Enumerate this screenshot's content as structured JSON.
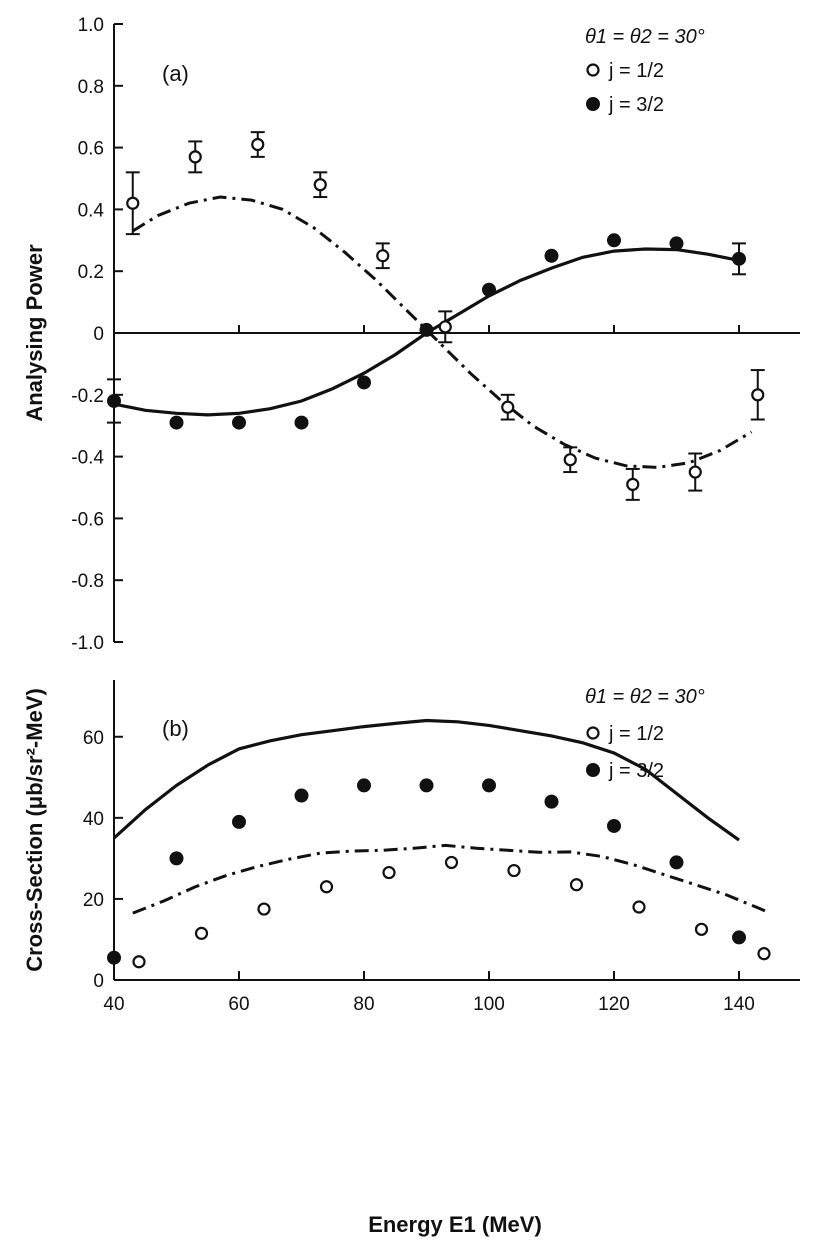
{
  "chart_data": [
    {
      "panel": "(a)",
      "type": "scatter",
      "ylabel": "Analysing Power",
      "xlim": [
        40,
        150
      ],
      "ylim": [
        -1.0,
        1.0
      ],
      "x_ticks": [
        40,
        60,
        80,
        100,
        120,
        140
      ],
      "y_ticks": [
        -1.0,
        -0.8,
        -0.6,
        -0.4,
        -0.2,
        0,
        0.2,
        0.4,
        0.6,
        0.8,
        1.0
      ],
      "y_tick_labels": [
        "-1.0",
        "-0.8",
        "-0.6",
        "-0.4",
        "-0.2",
        "0",
        "0.2",
        "0.4",
        "0.6",
        "0.8",
        "1.0"
      ],
      "zero_line": true,
      "legend": {
        "placement": "top-right",
        "header": "θ1 = θ2 = 30°",
        "entries": [
          {
            "label": "j = 1/2",
            "marker": "open-circle"
          },
          {
            "label": "j = 3/2",
            "marker": "filled-circle"
          }
        ]
      },
      "series": [
        {
          "label": "j = 1/2",
          "marker": "open-circle",
          "points": [
            {
              "x": 43,
              "y": 0.42,
              "err": 0.1
            },
            {
              "x": 53,
              "y": 0.57,
              "err": 0.05
            },
            {
              "x": 63,
              "y": 0.61,
              "err": 0.04
            },
            {
              "x": 73,
              "y": 0.48,
              "err": 0.04
            },
            {
              "x": 83,
              "y": 0.25,
              "err": 0.04
            },
            {
              "x": 93,
              "y": 0.02,
              "err": 0.05
            },
            {
              "x": 103,
              "y": -0.24,
              "err": 0.04
            },
            {
              "x": 113,
              "y": -0.41,
              "err": 0.04
            },
            {
              "x": 123,
              "y": -0.49,
              "err": 0.05
            },
            {
              "x": 133,
              "y": -0.45,
              "err": 0.06
            },
            {
              "x": 143,
              "y": -0.2,
              "err": 0.08
            }
          ]
        },
        {
          "label": "j = 3/2",
          "marker": "filled-circle",
          "points": [
            {
              "x": 40,
              "y": -0.22,
              "err": 0.07
            },
            {
              "x": 50,
              "y": -0.29
            },
            {
              "x": 60,
              "y": -0.29
            },
            {
              "x": 70,
              "y": -0.29
            },
            {
              "x": 80,
              "y": -0.16
            },
            {
              "x": 90,
              "y": 0.01
            },
            {
              "x": 100,
              "y": 0.14
            },
            {
              "x": 110,
              "y": 0.25
            },
            {
              "x": 120,
              "y": 0.3
            },
            {
              "x": 130,
              "y": 0.29
            },
            {
              "x": 140,
              "y": 0.24,
              "err": 0.05
            }
          ]
        }
      ],
      "curves": [
        {
          "style": "solid",
          "points": [
            [
              40,
              -0.23
            ],
            [
              45,
              -0.25
            ],
            [
              50,
              -0.26
            ],
            [
              55,
              -0.265
            ],
            [
              60,
              -0.26
            ],
            [
              65,
              -0.245
            ],
            [
              70,
              -0.22
            ],
            [
              75,
              -0.18
            ],
            [
              80,
              -0.13
            ],
            [
              85,
              -0.07
            ],
            [
              90,
              0.0
            ],
            [
              95,
              0.06
            ],
            [
              100,
              0.12
            ],
            [
              105,
              0.17
            ],
            [
              110,
              0.21
            ],
            [
              115,
              0.245
            ],
            [
              120,
              0.265
            ],
            [
              125,
              0.272
            ],
            [
              130,
              0.27
            ],
            [
              135,
              0.255
            ],
            [
              140,
              0.235
            ]
          ]
        },
        {
          "style": "dash-dot",
          "points": [
            [
              43,
              0.33
            ],
            [
              47,
              0.38
            ],
            [
              52,
              0.42
            ],
            [
              57,
              0.44
            ],
            [
              62,
              0.43
            ],
            [
              67,
              0.4
            ],
            [
              72,
              0.34
            ],
            [
              77,
              0.26
            ],
            [
              82,
              0.17
            ],
            [
              87,
              0.07
            ],
            [
              92,
              -0.03
            ],
            [
              97,
              -0.13
            ],
            [
              102,
              -0.22
            ],
            [
              107,
              -0.3
            ],
            [
              112,
              -0.36
            ],
            [
              117,
              -0.405
            ],
            [
              122,
              -0.43
            ],
            [
              127,
              -0.435
            ],
            [
              132,
              -0.42
            ],
            [
              137,
              -0.38
            ],
            [
              142,
              -0.32
            ]
          ]
        }
      ]
    },
    {
      "panel": "(b)",
      "type": "scatter",
      "xlabel": "Energy E1 (MeV)",
      "ylabel": "Cross-Section (μb/sr²-MeV)",
      "xlim": [
        40,
        150
      ],
      "ylim": [
        0,
        74
      ],
      "x_ticks": [
        40,
        60,
        80,
        100,
        120,
        140
      ],
      "x_tick_labels": [
        "40",
        "60",
        "80",
        "100",
        "120",
        "140"
      ],
      "y_ticks": [
        0,
        20,
        40,
        60
      ],
      "y_tick_labels": [
        "0",
        "20",
        "40",
        "60"
      ],
      "legend": {
        "placement": "top-right",
        "header": "θ1 = θ2 = 30°",
        "entries": [
          {
            "label": "j = 1/2",
            "marker": "open-circle"
          },
          {
            "label": "j = 3/2",
            "marker": "filled-circle"
          }
        ]
      },
      "series": [
        {
          "label": "j = 1/2",
          "marker": "open-circle",
          "points": [
            {
              "x": 44,
              "y": 4.5
            },
            {
              "x": 54,
              "y": 11.5
            },
            {
              "x": 64,
              "y": 17.5
            },
            {
              "x": 74,
              "y": 23
            },
            {
              "x": 84,
              "y": 26.5
            },
            {
              "x": 94,
              "y": 29
            },
            {
              "x": 104,
              "y": 27
            },
            {
              "x": 114,
              "y": 23.5
            },
            {
              "x": 124,
              "y": 18
            },
            {
              "x": 134,
              "y": 12.5
            },
            {
              "x": 144,
              "y": 6.5
            }
          ]
        },
        {
          "label": "j = 3/2",
          "marker": "filled-circle",
          "points": [
            {
              "x": 40,
              "y": 5.5
            },
            {
              "x": 50,
              "y": 30
            },
            {
              "x": 60,
              "y": 39
            },
            {
              "x": 70,
              "y": 45.5
            },
            {
              "x": 80,
              "y": 48
            },
            {
              "x": 90,
              "y": 48
            },
            {
              "x": 100,
              "y": 48
            },
            {
              "x": 110,
              "y": 44
            },
            {
              "x": 120,
              "y": 38
            },
            {
              "x": 130,
              "y": 29
            },
            {
              "x": 140,
              "y": 10.5
            }
          ]
        }
      ],
      "curves": [
        {
          "style": "solid",
          "points": [
            [
              40,
              35
            ],
            [
              45,
              42
            ],
            [
              50,
              48
            ],
            [
              55,
              53
            ],
            [
              60,
              57
            ],
            [
              65,
              59
            ],
            [
              70,
              60.5
            ],
            [
              75,
              61.5
            ],
            [
              80,
              62.5
            ],
            [
              85,
              63.3
            ],
            [
              90,
              64
            ],
            [
              95,
              63.7
            ],
            [
              100,
              62.8
            ],
            [
              105,
              61.5
            ],
            [
              110,
              60.2
            ],
            [
              115,
              58.5
            ],
            [
              120,
              56
            ],
            [
              125,
              52
            ],
            [
              130,
              46
            ],
            [
              135,
              40
            ],
            [
              140,
              34.5
            ]
          ]
        },
        {
          "style": "dash-dot",
          "points": [
            [
              43,
              16.5
            ],
            [
              48,
              19.5
            ],
            [
              53,
              23
            ],
            [
              58,
              25.8
            ],
            [
              63,
              28
            ],
            [
              68,
              29.8
            ],
            [
              73,
              31.3
            ],
            [
              78,
              31.8
            ],
            [
              83,
              32
            ],
            [
              88,
              32.5
            ],
            [
              93,
              33.2
            ],
            [
              98,
              32.5
            ],
            [
              103,
              32
            ],
            [
              108,
              31.5
            ],
            [
              113,
              31.6
            ],
            [
              118,
              30.5
            ],
            [
              123,
              28.5
            ],
            [
              128,
              26
            ],
            [
              133,
              23.5
            ],
            [
              138,
              21
            ],
            [
              143,
              17.8
            ],
            [
              145,
              16.5
            ]
          ]
        }
      ]
    }
  ]
}
